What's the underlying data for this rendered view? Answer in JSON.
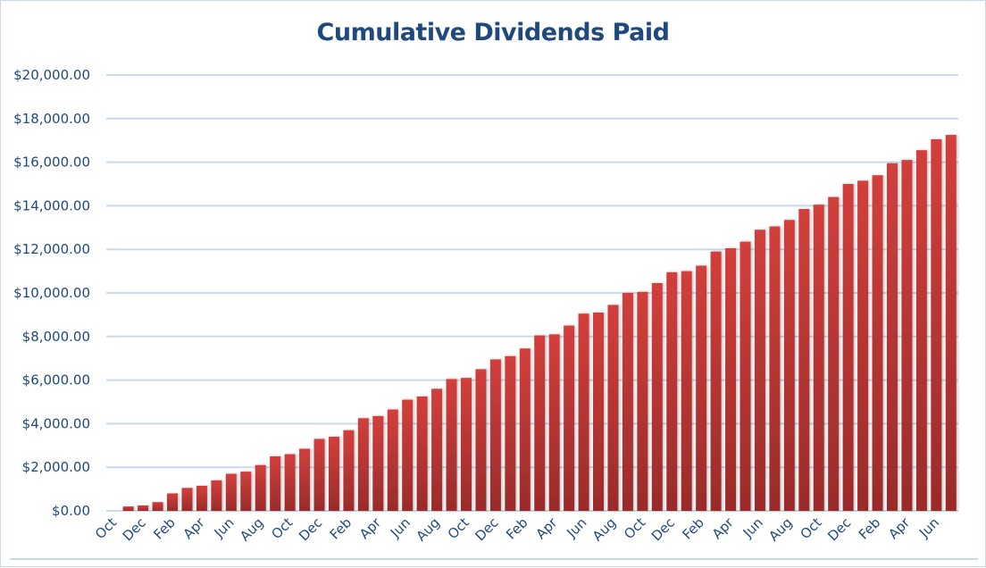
{
  "chart_data": {
    "type": "bar",
    "title": "Cumulative Dividends Paid",
    "xlabel": "",
    "ylabel": "",
    "ylim": [
      0,
      20000
    ],
    "y_ticks": [
      0,
      2000,
      4000,
      6000,
      8000,
      10000,
      12000,
      14000,
      16000,
      18000,
      20000
    ],
    "y_tick_labels": [
      "$0.00",
      "$2,000.00",
      "$4,000.00",
      "$6,000.00",
      "$8,000.00",
      "$10,000.00",
      "$12,000.00",
      "$14,000.00",
      "$16,000.00",
      "$18,000.00",
      "$20,000.00"
    ],
    "x_tick_labels": [
      "Oct",
      "Dec",
      "Feb",
      "Apr",
      "Jun",
      "Aug",
      "Oct",
      "Dec",
      "Feb",
      "Apr",
      "Jun",
      "Aug",
      "Oct",
      "Dec",
      "Feb",
      "Apr",
      "Jun",
      "Aug",
      "Oct",
      "Dec",
      "Feb",
      "Apr",
      "Jun",
      "Aug",
      "Oct",
      "Dec",
      "Feb",
      "Apr",
      "Jun"
    ],
    "x_tick_every": 2,
    "values": [
      0,
      200,
      250,
      400,
      800,
      1050,
      1150,
      1400,
      1700,
      1800,
      2100,
      2500,
      2600,
      2850,
      3300,
      3400,
      3700,
      4250,
      4350,
      4650,
      5100,
      5250,
      5600,
      6050,
      6100,
      6500,
      6950,
      7100,
      7450,
      8050,
      8100,
      8500,
      9050,
      9100,
      9450,
      10000,
      10050,
      10450,
      10950,
      11000,
      11250,
      11900,
      12050,
      12350,
      12900,
      13050,
      13350,
      13850,
      14050,
      14400,
      15000,
      15150,
      15400,
      15950,
      16100,
      16550,
      17050,
      17250
    ],
    "grid": true,
    "legend": "none",
    "colors": {
      "bar_top": "#d23f3c",
      "bar_bottom": "#9a2b2b",
      "grid": "#c9d9ee",
      "text": "#1f497d"
    }
  }
}
